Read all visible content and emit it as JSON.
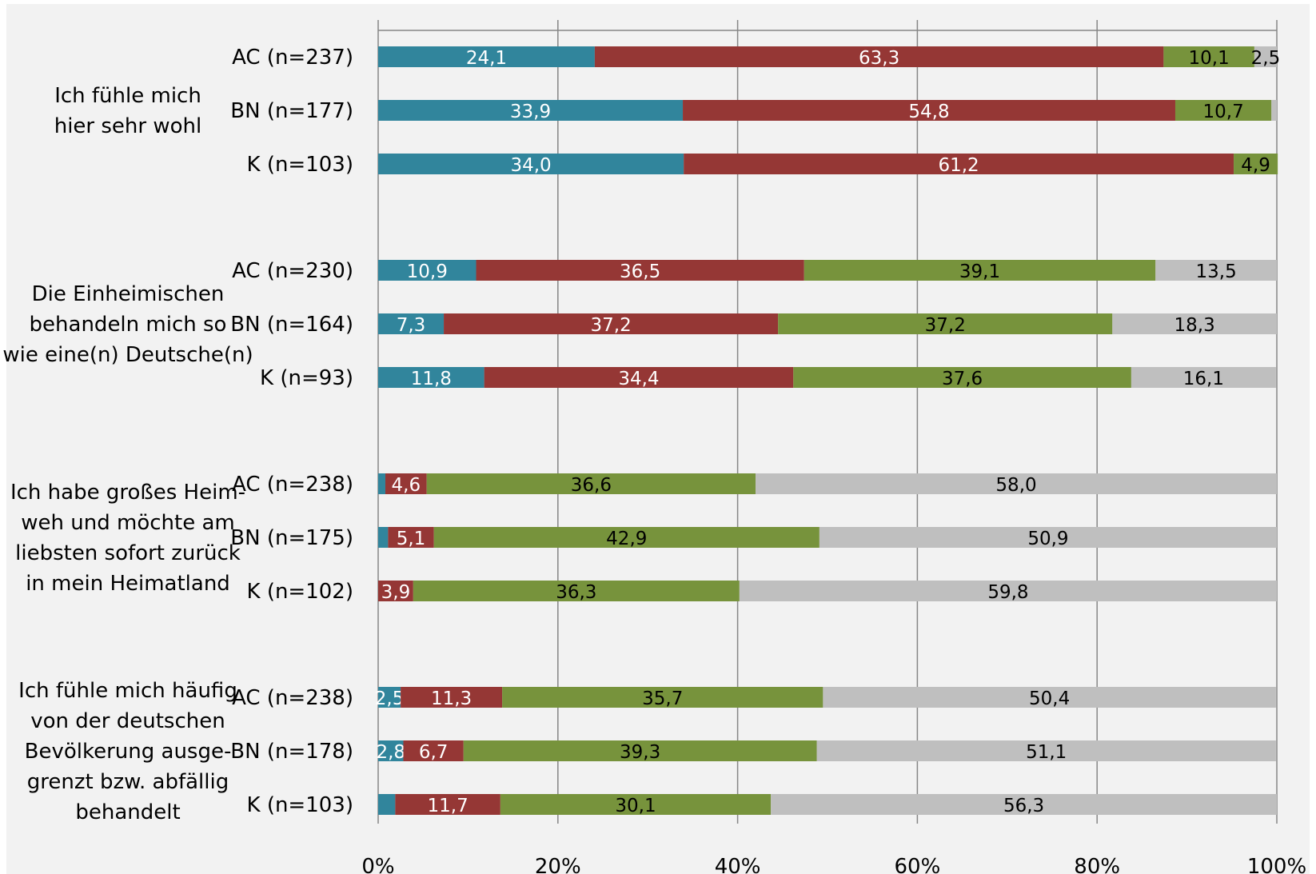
{
  "chart_data": {
    "type": "bar",
    "orientation": "horizontal",
    "stacked": "percent",
    "xlim": [
      0,
      100
    ],
    "x_ticks": [
      "0%",
      "20%",
      "40%",
      "60%",
      "80%",
      "100%"
    ],
    "grid": true,
    "legend": "none",
    "colors": [
      "#31859c",
      "#953735",
      "#77933c",
      "#bfbfbf"
    ],
    "plot_background": "#f2f2f2",
    "groups": [
      {
        "statement_lines": [
          "Ich fühle mich",
          "hier sehr wohl"
        ],
        "rows": [
          {
            "label": "AC (n=237)",
            "values": [
              24.1,
              63.3,
              10.1,
              2.5
            ],
            "value_labels": [
              "24,1",
              "63,3",
              "10,1",
              "2,5"
            ]
          },
          {
            "label": "BN (n=177)",
            "values": [
              33.9,
              54.8,
              10.7,
              0.6
            ],
            "value_labels": [
              "33,9",
              "54,8",
              "10,7",
              ""
            ]
          },
          {
            "label": "K (n=103)",
            "values": [
              34.0,
              61.2,
              4.9,
              0
            ],
            "value_labels": [
              "34,0",
              "61,2",
              "4,9",
              ""
            ]
          }
        ]
      },
      {
        "statement_lines": [
          "Die Einheimischen",
          "behandeln mich so",
          "wie eine(n) Deutsche(n)"
        ],
        "rows": [
          {
            "label": "AC (n=230)",
            "values": [
              10.9,
              36.5,
              39.1,
              13.5
            ],
            "value_labels": [
              "10,9",
              "36,5",
              "39,1",
              "13,5"
            ]
          },
          {
            "label": "BN (n=164)",
            "values": [
              7.3,
              37.2,
              37.2,
              18.3
            ],
            "value_labels": [
              "7,3",
              "37,2",
              "37,2",
              "18,3"
            ]
          },
          {
            "label": "K (n=93)",
            "values": [
              11.8,
              34.4,
              37.6,
              16.1
            ],
            "value_labels": [
              "11,8",
              "34,4",
              "37,6",
              "16,1"
            ]
          }
        ]
      },
      {
        "statement_lines": [
          "Ich habe großes Heim-",
          "weh und möchte am",
          "liebsten sofort zurück",
          "in mein Heimatland"
        ],
        "rows": [
          {
            "label": "AC (n=238)",
            "values": [
              0.8,
              4.6,
              36.6,
              58.0
            ],
            "value_labels": [
              "",
              "4,6",
              "36,6",
              "58,0"
            ]
          },
          {
            "label": "BN (n=175)",
            "values": [
              1.1,
              5.1,
              42.9,
              50.9
            ],
            "value_labels": [
              "",
              "5,1",
              "42,9",
              "50,9"
            ]
          },
          {
            "label": "K (n=102)",
            "values": [
              0,
              3.9,
              36.3,
              59.8
            ],
            "value_labels": [
              "",
              "3,9",
              "36,3",
              "59,8"
            ]
          }
        ]
      },
      {
        "statement_lines": [
          "Ich fühle mich häufig",
          "von der deutschen",
          "Bevölkerung ausge-",
          "grenzt bzw. abfällig",
          "behandelt"
        ],
        "rows": [
          {
            "label": "AC (n=238)",
            "values": [
              2.5,
              11.3,
              35.7,
              50.4
            ],
            "value_labels": [
              "2,5",
              "11,3",
              "35,7",
              "50,4"
            ]
          },
          {
            "label": "BN (n=178)",
            "values": [
              2.8,
              6.7,
              39.3,
              51.1
            ],
            "value_labels": [
              "2,8",
              "6,7",
              "39,3",
              "51,1"
            ]
          },
          {
            "label": "K (n=103)",
            "values": [
              1.9,
              11.7,
              30.1,
              56.3
            ],
            "value_labels": [
              "",
              "11,7",
              "30,1",
              "56,3"
            ]
          }
        ]
      }
    ]
  }
}
